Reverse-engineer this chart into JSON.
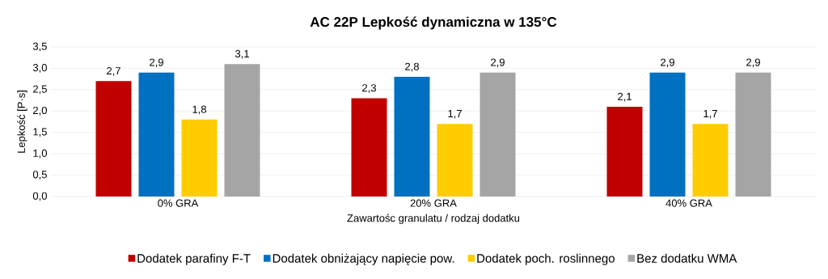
{
  "chart_data": {
    "type": "bar",
    "title": "AC 22P Lepkość dynamiczna w 135°C",
    "xlabel": "Zawartośc granulatu / rodzaj dodatku",
    "ylabel": "Lepkość [P·s]",
    "categories": [
      "0% GRA",
      "20% GRA",
      "40% GRA"
    ],
    "series": [
      {
        "name": "Dodatek parafiny F-T",
        "color": "#c00000",
        "values": [
          2.7,
          2.3,
          2.1
        ],
        "value_labels": [
          "2,7",
          "2,3",
          "2,1"
        ]
      },
      {
        "name": "Dodatek obniżający napięcie pow.",
        "color": "#0070c0",
        "values": [
          2.9,
          2.8,
          2.9
        ],
        "value_labels": [
          "2,9",
          "2,8",
          "2,9"
        ]
      },
      {
        "name": "Dodatek poch. roslinnego",
        "color": "#ffcc00",
        "values": [
          1.8,
          1.7,
          1.7
        ],
        "value_labels": [
          "1,8",
          "1,7",
          "1,7"
        ]
      },
      {
        "name": "Bez dodatku WMA",
        "color": "#a5a5a5",
        "values": [
          3.1,
          2.9,
          2.9
        ],
        "value_labels": [
          "3,1",
          "2,9",
          "2,9"
        ]
      }
    ],
    "ylim": [
      0,
      3.5
    ],
    "yticks": [
      {
        "value": 0,
        "label": "0,0"
      },
      {
        "value": 0.5,
        "label": "0,5"
      },
      {
        "value": 1,
        "label": "1,0"
      },
      {
        "value": 1.5,
        "label": "1,5"
      },
      {
        "value": 2,
        "label": "2,0"
      },
      {
        "value": 2.5,
        "label": "2,5"
      },
      {
        "value": 3,
        "label": "3,0"
      },
      {
        "value": 3.5,
        "label": "3,5"
      }
    ],
    "grid": "y",
    "legend": "bottom"
  }
}
